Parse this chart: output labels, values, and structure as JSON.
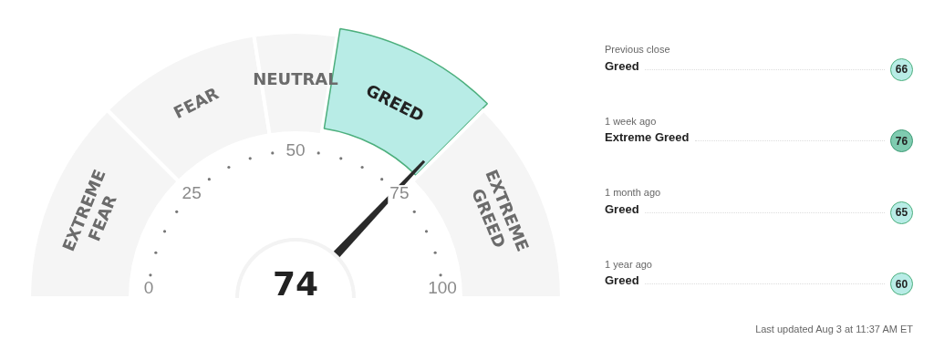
{
  "chart_data": [
    {
      "type": "donut",
      "categories": [
        "EXTREME FEAR",
        "FEAR",
        "NEUTRAL",
        "GREED",
        "EXTREME GREED"
      ],
      "values": [
        25,
        20,
        10,
        20,
        25
      ],
      "colors": [
        "#f5f5f5",
        "#f5f5f5",
        "#f5f5f5",
        "#b8ece6",
        "#f5f5f5"
      ],
      "needle": "GREED",
      "annotations": [
        "74",
        "0",
        "25",
        "50",
        "75",
        "100"
      ]
    },
    {
      "type": "other",
      "annotations": [
        "Previous close",
        "Greed",
        "66",
        "1 week ago",
        "Extreme Greed",
        "76",
        "1 month ago",
        "Greed",
        "65",
        "1 year ago",
        "Greed",
        "60",
        "Last updated Aug 3 at 11:37 AM ET"
      ]
    }
  ]
}
